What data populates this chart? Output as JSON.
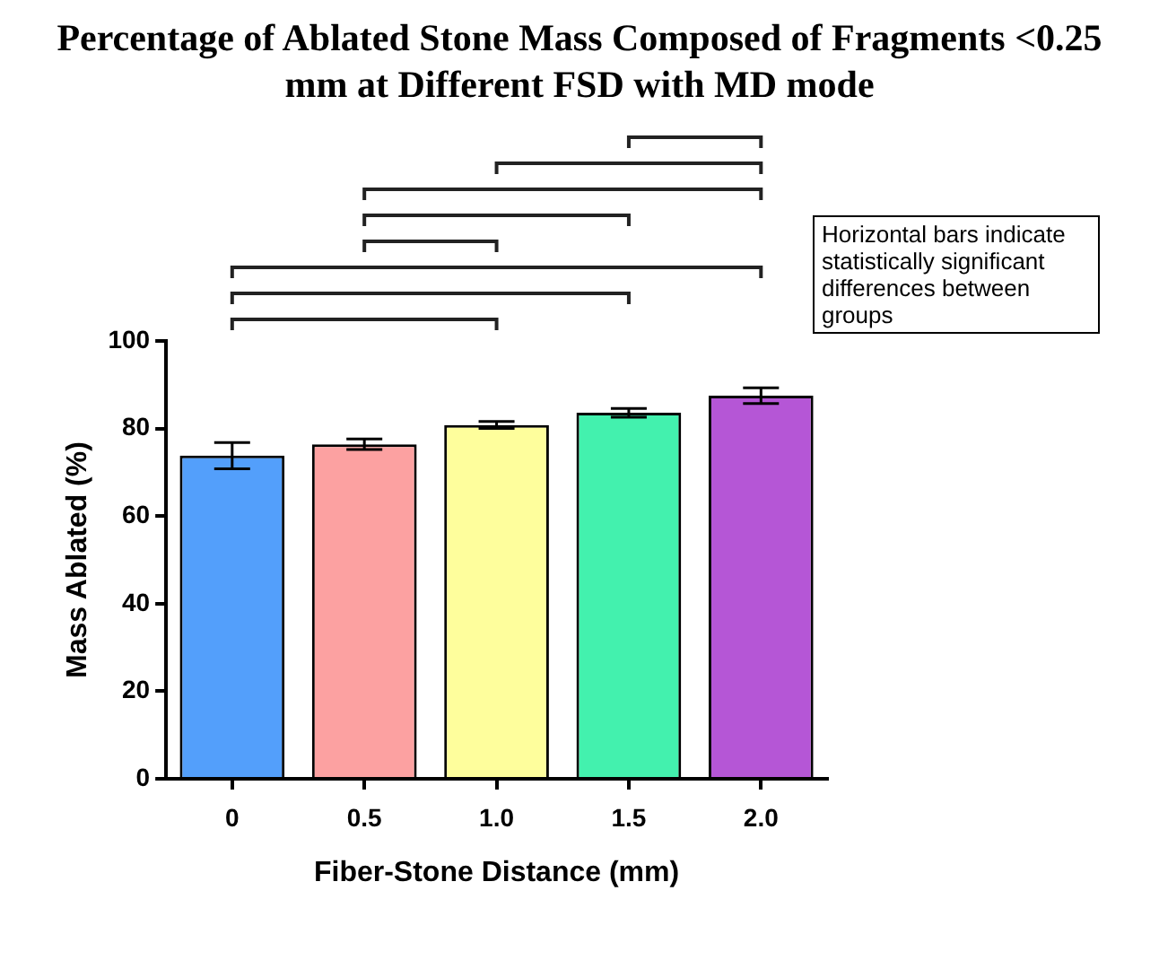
{
  "chart_data": {
    "type": "bar",
    "title": "Percentage of Ablated Stone Mass Composed of Fragments <0.25 mm at Different FSD with MD mode",
    "xlabel": "Fiber-Stone Distance (mm)",
    "ylabel": "Mass Ablated (%)",
    "categories": [
      "0",
      "0.5",
      "1.0",
      "1.5",
      "2.0"
    ],
    "values": [
      73.8,
      76.4,
      80.8,
      83.6,
      87.5
    ],
    "errors": [
      3,
      1.2,
      0.8,
      1,
      1.8
    ],
    "colors": [
      "#539ffb",
      "#fca1a1",
      "#fefe9c",
      "#43f1ae",
      "#b556d6"
    ],
    "ylim": [
      0,
      100
    ],
    "yticks": [
      0,
      20,
      40,
      60,
      80,
      100
    ],
    "grid": false,
    "legend": false,
    "annotations": [
      "Horizontal bars indicate statistically significant differences between groups"
    ]
  }
}
